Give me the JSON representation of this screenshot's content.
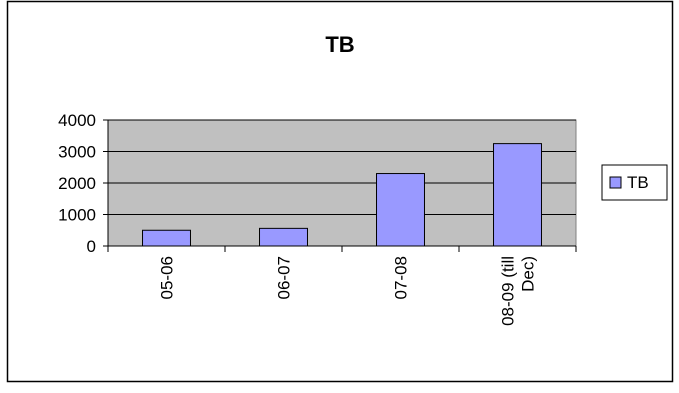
{
  "chart_data": {
    "type": "bar",
    "title": "TB",
    "xlabel": "",
    "ylabel": "",
    "categories": [
      "05-06",
      "06-07",
      "07-08",
      "08-09 (till Dec)"
    ],
    "category_lines": [
      [
        "05-06"
      ],
      [
        "06-07"
      ],
      [
        "07-08"
      ],
      [
        "08-09 (till",
        "Dec)"
      ]
    ],
    "series": [
      {
        "name": "TB",
        "values": [
          500,
          560,
          2300,
          3250
        ],
        "color": "#9999ff"
      }
    ],
    "ylim": [
      0,
      4000
    ],
    "yticks": [
      "0",
      "1000",
      "2000",
      "3000",
      "4000"
    ],
    "grid": true,
    "plot_background": "#c0c0c0",
    "legend_position": "right",
    "x_tick_label_rotation": "vertical"
  }
}
